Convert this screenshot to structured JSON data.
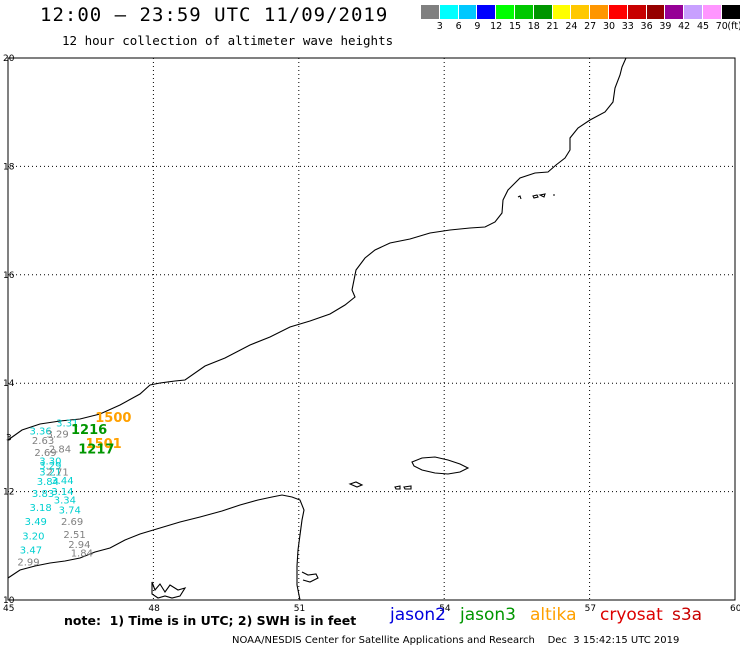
{
  "title": "12:00 – 23:59 UTC 11/09/2019",
  "subtitle": "12 hour collection of altimeter wave heights",
  "scale": {
    "colors": [
      "#808080",
      "#00ffff",
      "#00c8ff",
      "#0000ff",
      "#00ff00",
      "#00c800",
      "#009600",
      "#ffff00",
      "#ffc800",
      "#ff9600",
      "#ff0000",
      "#c80000",
      "#960000",
      "#960096",
      "#c8a0ff",
      "#ff96ff",
      "#000000"
    ],
    "labels": [
      "3",
      "6",
      "9",
      "12",
      "15",
      "18",
      "21",
      "24",
      "27",
      "30",
      "33",
      "36",
      "39",
      "42",
      "45",
      "70",
      "(ft)"
    ]
  },
  "axes": {
    "x_ticks": [
      "45",
      "48",
      "51",
      "54",
      "57",
      "60"
    ],
    "y_ticks": [
      "20",
      "18",
      "16",
      "14",
      "12",
      "10"
    ],
    "y_mid_label": "3"
  },
  "observations": [
    {
      "text": "3.31",
      "lon": 46.2,
      "lat": 13.2,
      "color": "#00d0d0"
    },
    {
      "text": "3.36",
      "lon": 45.65,
      "lat": 13.05,
      "color": "#00d0d0"
    },
    {
      "text": "3.29",
      "lon": 46.0,
      "lat": 13.0,
      "color": "#808080"
    },
    {
      "text": "2.63",
      "lon": 45.7,
      "lat": 12.88,
      "color": "#808080"
    },
    {
      "text": "2.84",
      "lon": 46.05,
      "lat": 12.72,
      "color": "#808080"
    },
    {
      "text": "2.69",
      "lon": 45.75,
      "lat": 12.66,
      "color": "#808080"
    },
    {
      "text": "3.30",
      "lon": 45.85,
      "lat": 12.5,
      "color": "#00d0d0"
    },
    {
      "text": "3.29",
      "lon": 45.85,
      "lat": 12.42,
      "color": "#00d0d0"
    },
    {
      "text": "3.21",
      "lon": 45.85,
      "lat": 12.3,
      "color": "#00d0d0"
    },
    {
      "text": "2.71",
      "lon": 46.0,
      "lat": 12.3,
      "color": "#808080"
    },
    {
      "text": "3.84",
      "lon": 45.8,
      "lat": 12.12,
      "color": "#00d0d0"
    },
    {
      "text": "3.44",
      "lon": 46.1,
      "lat": 12.14,
      "color": "#00d0d0"
    },
    {
      "text": "3.14",
      "lon": 46.1,
      "lat": 11.94,
      "color": "#00d0d0"
    },
    {
      "text": "3.83",
      "lon": 45.7,
      "lat": 11.9,
      "color": "#00d0d0"
    },
    {
      "text": "3.34",
      "lon": 46.15,
      "lat": 11.78,
      "color": "#00d0d0"
    },
    {
      "text": "3.18",
      "lon": 45.65,
      "lat": 11.64,
      "color": "#00d0d0"
    },
    {
      "text": "3.74",
      "lon": 46.25,
      "lat": 11.6,
      "color": "#00d0d0"
    },
    {
      "text": "3.49",
      "lon": 45.55,
      "lat": 11.38,
      "color": "#00d0d0"
    },
    {
      "text": "2.69",
      "lon": 46.3,
      "lat": 11.38,
      "color": "#808080"
    },
    {
      "text": "3.20",
      "lon": 45.5,
      "lat": 11.12,
      "color": "#00d0d0"
    },
    {
      "text": "2.51",
      "lon": 46.35,
      "lat": 11.14,
      "color": "#808080"
    },
    {
      "text": "2.94",
      "lon": 46.45,
      "lat": 10.96,
      "color": "#808080"
    },
    {
      "text": "3.47",
      "lon": 45.45,
      "lat": 10.86,
      "color": "#00d0d0"
    },
    {
      "text": "1.84",
      "lon": 46.5,
      "lat": 10.8,
      "color": "#808080"
    },
    {
      "text": "2.99",
      "lon": 45.4,
      "lat": 10.64,
      "color": "#808080"
    }
  ],
  "time_labels": [
    {
      "text": "1500",
      "lon": 46.8,
      "lat": 13.28,
      "color": "#ffa000"
    },
    {
      "text": "1216",
      "lon": 46.3,
      "lat": 13.06,
      "color": "#009600"
    },
    {
      "text": "1501",
      "lon": 46.6,
      "lat": 12.8,
      "color": "#ffa000"
    },
    {
      "text": "1217",
      "lon": 46.45,
      "lat": 12.7,
      "color": "#009600"
    }
  ],
  "note": "note:  1) Time is in UTC; 2) SWH is in feet",
  "satellites": [
    {
      "name": "jason2",
      "color": "#0000dd"
    },
    {
      "name": "jason3",
      "color": "#009600"
    },
    {
      "name": "altika",
      "color": "#ffa000"
    },
    {
      "name": "cryosat",
      "color": "#dd0000"
    },
    {
      "name": "s3a",
      "color": "#c80000"
    }
  ],
  "footer": {
    "credit": "NOAA/NESDIS Center for Satellite Applications and Research",
    "timestamp": "Dec  3 15:42:15 UTC 2019"
  }
}
